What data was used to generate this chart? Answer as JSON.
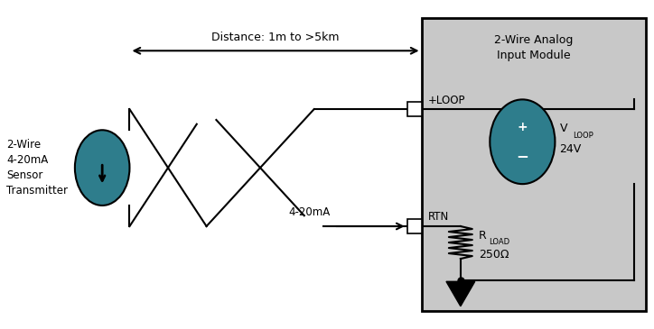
{
  "bg_color": "#ffffff",
  "module_bg": "#c8c8c8",
  "teal_color": "#2e7d8c",
  "title_module": "2-Wire Analog\nInput Module",
  "label_transmitter": "2-Wire\n4-20mA\nSensor\nTransmitter",
  "label_distance": "Distance: 1m to >5km",
  "label_current": "4-20mA",
  "label_loop_plus": "+LOOP",
  "label_rtn": "RTN",
  "label_rload_val": "250Ω",
  "label_vloop_val": "24V"
}
